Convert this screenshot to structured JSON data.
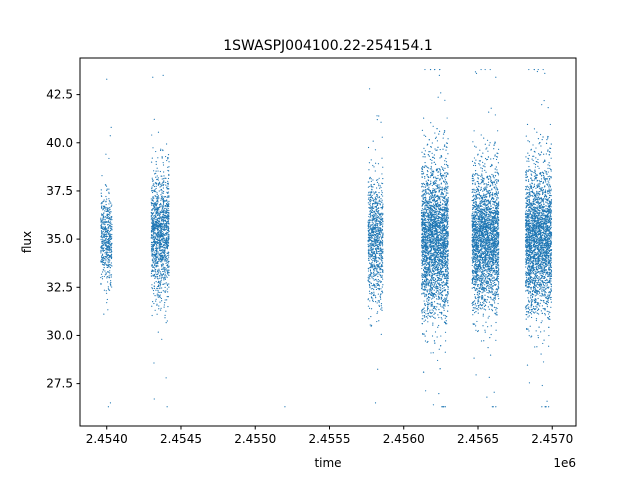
{
  "chart_data": {
    "type": "scatter",
    "title": "1SWASPJ004100.22-254154.1",
    "xlabel": "time",
    "ylabel": "flux",
    "x_offset_label": "1e6",
    "xlim": [
      2453820,
      2457160
    ],
    "ylim": [
      25.3,
      44.4
    ],
    "x_ticks": [
      2454000,
      2454500,
      2455000,
      2455500,
      2456000,
      2456500,
      2457000
    ],
    "x_tick_labels": [
      "2.4540",
      "2.4545",
      "2.4550",
      "2.4555",
      "2.4560",
      "2.4565",
      "2.4570"
    ],
    "y_ticks": [
      27.5,
      30.0,
      32.5,
      35.0,
      37.5,
      40.0,
      42.5
    ],
    "y_tick_labels": [
      "27.5",
      "30.0",
      "32.5",
      "35.0",
      "37.5",
      "40.0",
      "42.5"
    ],
    "grid": false,
    "marker_color": "#1f77b4",
    "series": [
      {
        "clusters": [
          {
            "x_range": [
              2453960,
              2454035
            ],
            "center": 35.0,
            "sd": 1.1,
            "count": 500,
            "extremes": [
              [
                2454000,
                43.3
              ],
              [
                2454030,
                40.8
              ],
              [
                2454025,
                26.5
              ]
            ]
          },
          {
            "x_range": [
              2454300,
              2454420
            ],
            "center": 35.2,
            "sd": 1.6,
            "count": 1300,
            "extremes": [
              [
                2454310,
                43.4
              ],
              [
                2454380,
                43.5
              ],
              [
                2454320,
                26.7
              ],
              [
                2454400,
                27.8
              ]
            ]
          },
          {
            "x_range": [
              2455760,
              2455860
            ],
            "center": 35.0,
            "sd": 1.6,
            "count": 900,
            "extremes": [
              [
                2455770,
                42.8
              ],
              [
                2455820,
                41.4
              ],
              [
                2455810,
                26.5
              ]
            ]
          },
          {
            "x_range": [
              2456120,
              2456300
            ],
            "center": 35.0,
            "sd": 1.9,
            "count": 3000,
            "extremes": [
              [
                2456180,
                43.8
              ],
              [
                2456240,
                43.5
              ],
              [
                2456200,
                26.4
              ]
            ]
          },
          {
            "x_range": [
              2456460,
              2456640
            ],
            "center": 35.0,
            "sd": 1.7,
            "count": 2600,
            "extremes": [
              [
                2456490,
                43.6
              ],
              [
                2456620,
                43.4
              ],
              [
                2456560,
                26.8
              ]
            ]
          },
          {
            "x_range": [
              2456820,
              2456995
            ],
            "center": 35.0,
            "sd": 1.8,
            "count": 2800,
            "extremes": [
              [
                2456900,
                43.7
              ],
              [
                2456950,
                43.6
              ],
              [
                2456930,
                26.3
              ]
            ]
          }
        ],
        "outliers": [
          [
            2455200,
            26.3
          ]
        ]
      }
    ]
  }
}
